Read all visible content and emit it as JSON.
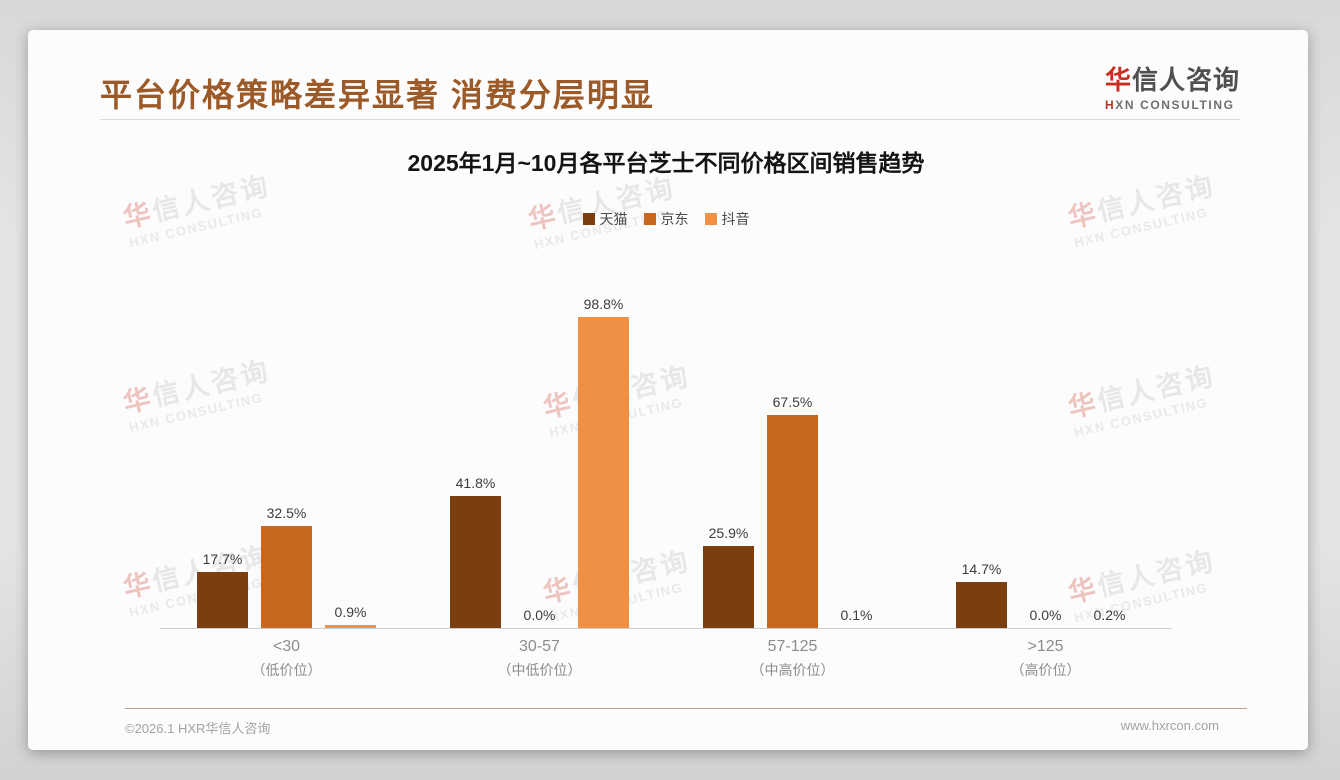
{
  "header": {
    "title": "平台价格策略差异显著 消费分层明显"
  },
  "logo": {
    "cn_first": "华",
    "cn_rest": "信人咨询",
    "en_first": "H",
    "en_rest": "XN CONSULTING"
  },
  "watermark": {
    "cn_first": "华",
    "cn_rest": "信人咨询",
    "en": "HXN CONSULTING"
  },
  "chart_data": {
    "type": "bar",
    "title": "2025年1月~10月各平台芝士不同价格区间销售趋势",
    "categories": [
      "<30",
      "30-57",
      "57-125",
      ">125"
    ],
    "category_sublabels": [
      "（低价位）",
      "（中低价位）",
      "（中高价位）",
      "（高价位）"
    ],
    "series": [
      {
        "name": "天猫",
        "color": "#7C3E10",
        "values": [
          17.7,
          41.8,
          25.9,
          14.7
        ]
      },
      {
        "name": "京东",
        "color": "#C8671E",
        "values": [
          32.5,
          0.0,
          67.5,
          0.0
        ]
      },
      {
        "name": "抖音",
        "color": "#EF9044",
        "values": [
          0.9,
          98.8,
          0.1,
          0.2
        ]
      }
    ],
    "value_suffix": "%",
    "ylim": [
      0,
      100
    ],
    "grid": false,
    "legend_position": "top",
    "accent_colors": {
      "title_brown": "#9c5a28",
      "footer_rule_tan": "#c3a081",
      "logo_red": "#cc2d20"
    }
  },
  "footer": {
    "copyright": "©2026.1 HXR华信人咨询",
    "website": "www.hxrcon.com"
  }
}
